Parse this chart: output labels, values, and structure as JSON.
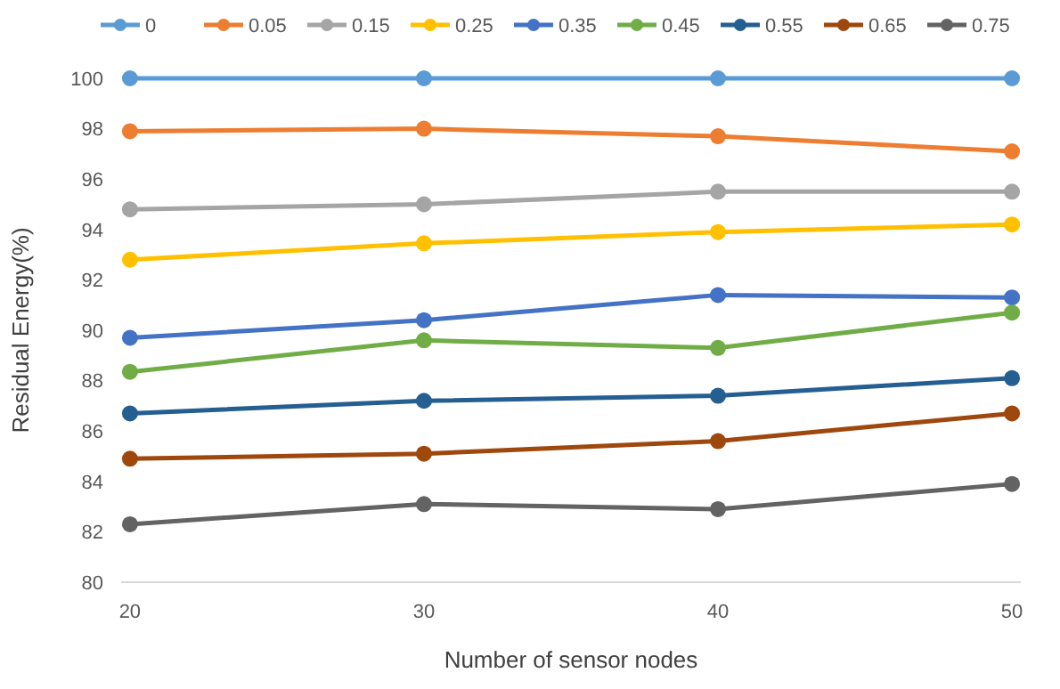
{
  "chart_data": {
    "type": "line",
    "xlabel": "Number of sensor nodes",
    "ylabel": "Residual Energy(%)",
    "categories": [
      "20",
      "30",
      "40",
      "50"
    ],
    "ylim": [
      80,
      100
    ],
    "yticks": [
      80,
      82,
      84,
      86,
      88,
      90,
      92,
      94,
      96,
      98,
      100
    ],
    "legend": "top",
    "marker": "circle",
    "grid": false,
    "series": [
      {
        "name": "0",
        "color": "#5b9bd5",
        "values": [
          100,
          100,
          100,
          100
        ]
      },
      {
        "name": "0.05",
        "color": "#ed7d31",
        "values": [
          97.9,
          98.0,
          97.7,
          97.1
        ]
      },
      {
        "name": "0.15",
        "color": "#a5a5a5",
        "values": [
          94.8,
          95.0,
          95.5,
          95.5
        ]
      },
      {
        "name": "0.25",
        "color": "#ffc000",
        "values": [
          92.8,
          93.45,
          93.9,
          94.2
        ]
      },
      {
        "name": "0.35",
        "color": "#4472c4",
        "values": [
          89.7,
          90.4,
          91.4,
          91.3
        ]
      },
      {
        "name": "0.45",
        "color": "#70ad47",
        "values": [
          88.35,
          89.6,
          89.3,
          90.7
        ]
      },
      {
        "name": "0.55",
        "color": "#255e91",
        "values": [
          86.7,
          87.2,
          87.4,
          88.1
        ]
      },
      {
        "name": "0.65",
        "color": "#9e480e",
        "values": [
          84.9,
          85.1,
          85.6,
          86.7
        ]
      },
      {
        "name": "0.75",
        "color": "#636363",
        "values": [
          82.3,
          83.1,
          82.9,
          83.9
        ]
      }
    ]
  }
}
